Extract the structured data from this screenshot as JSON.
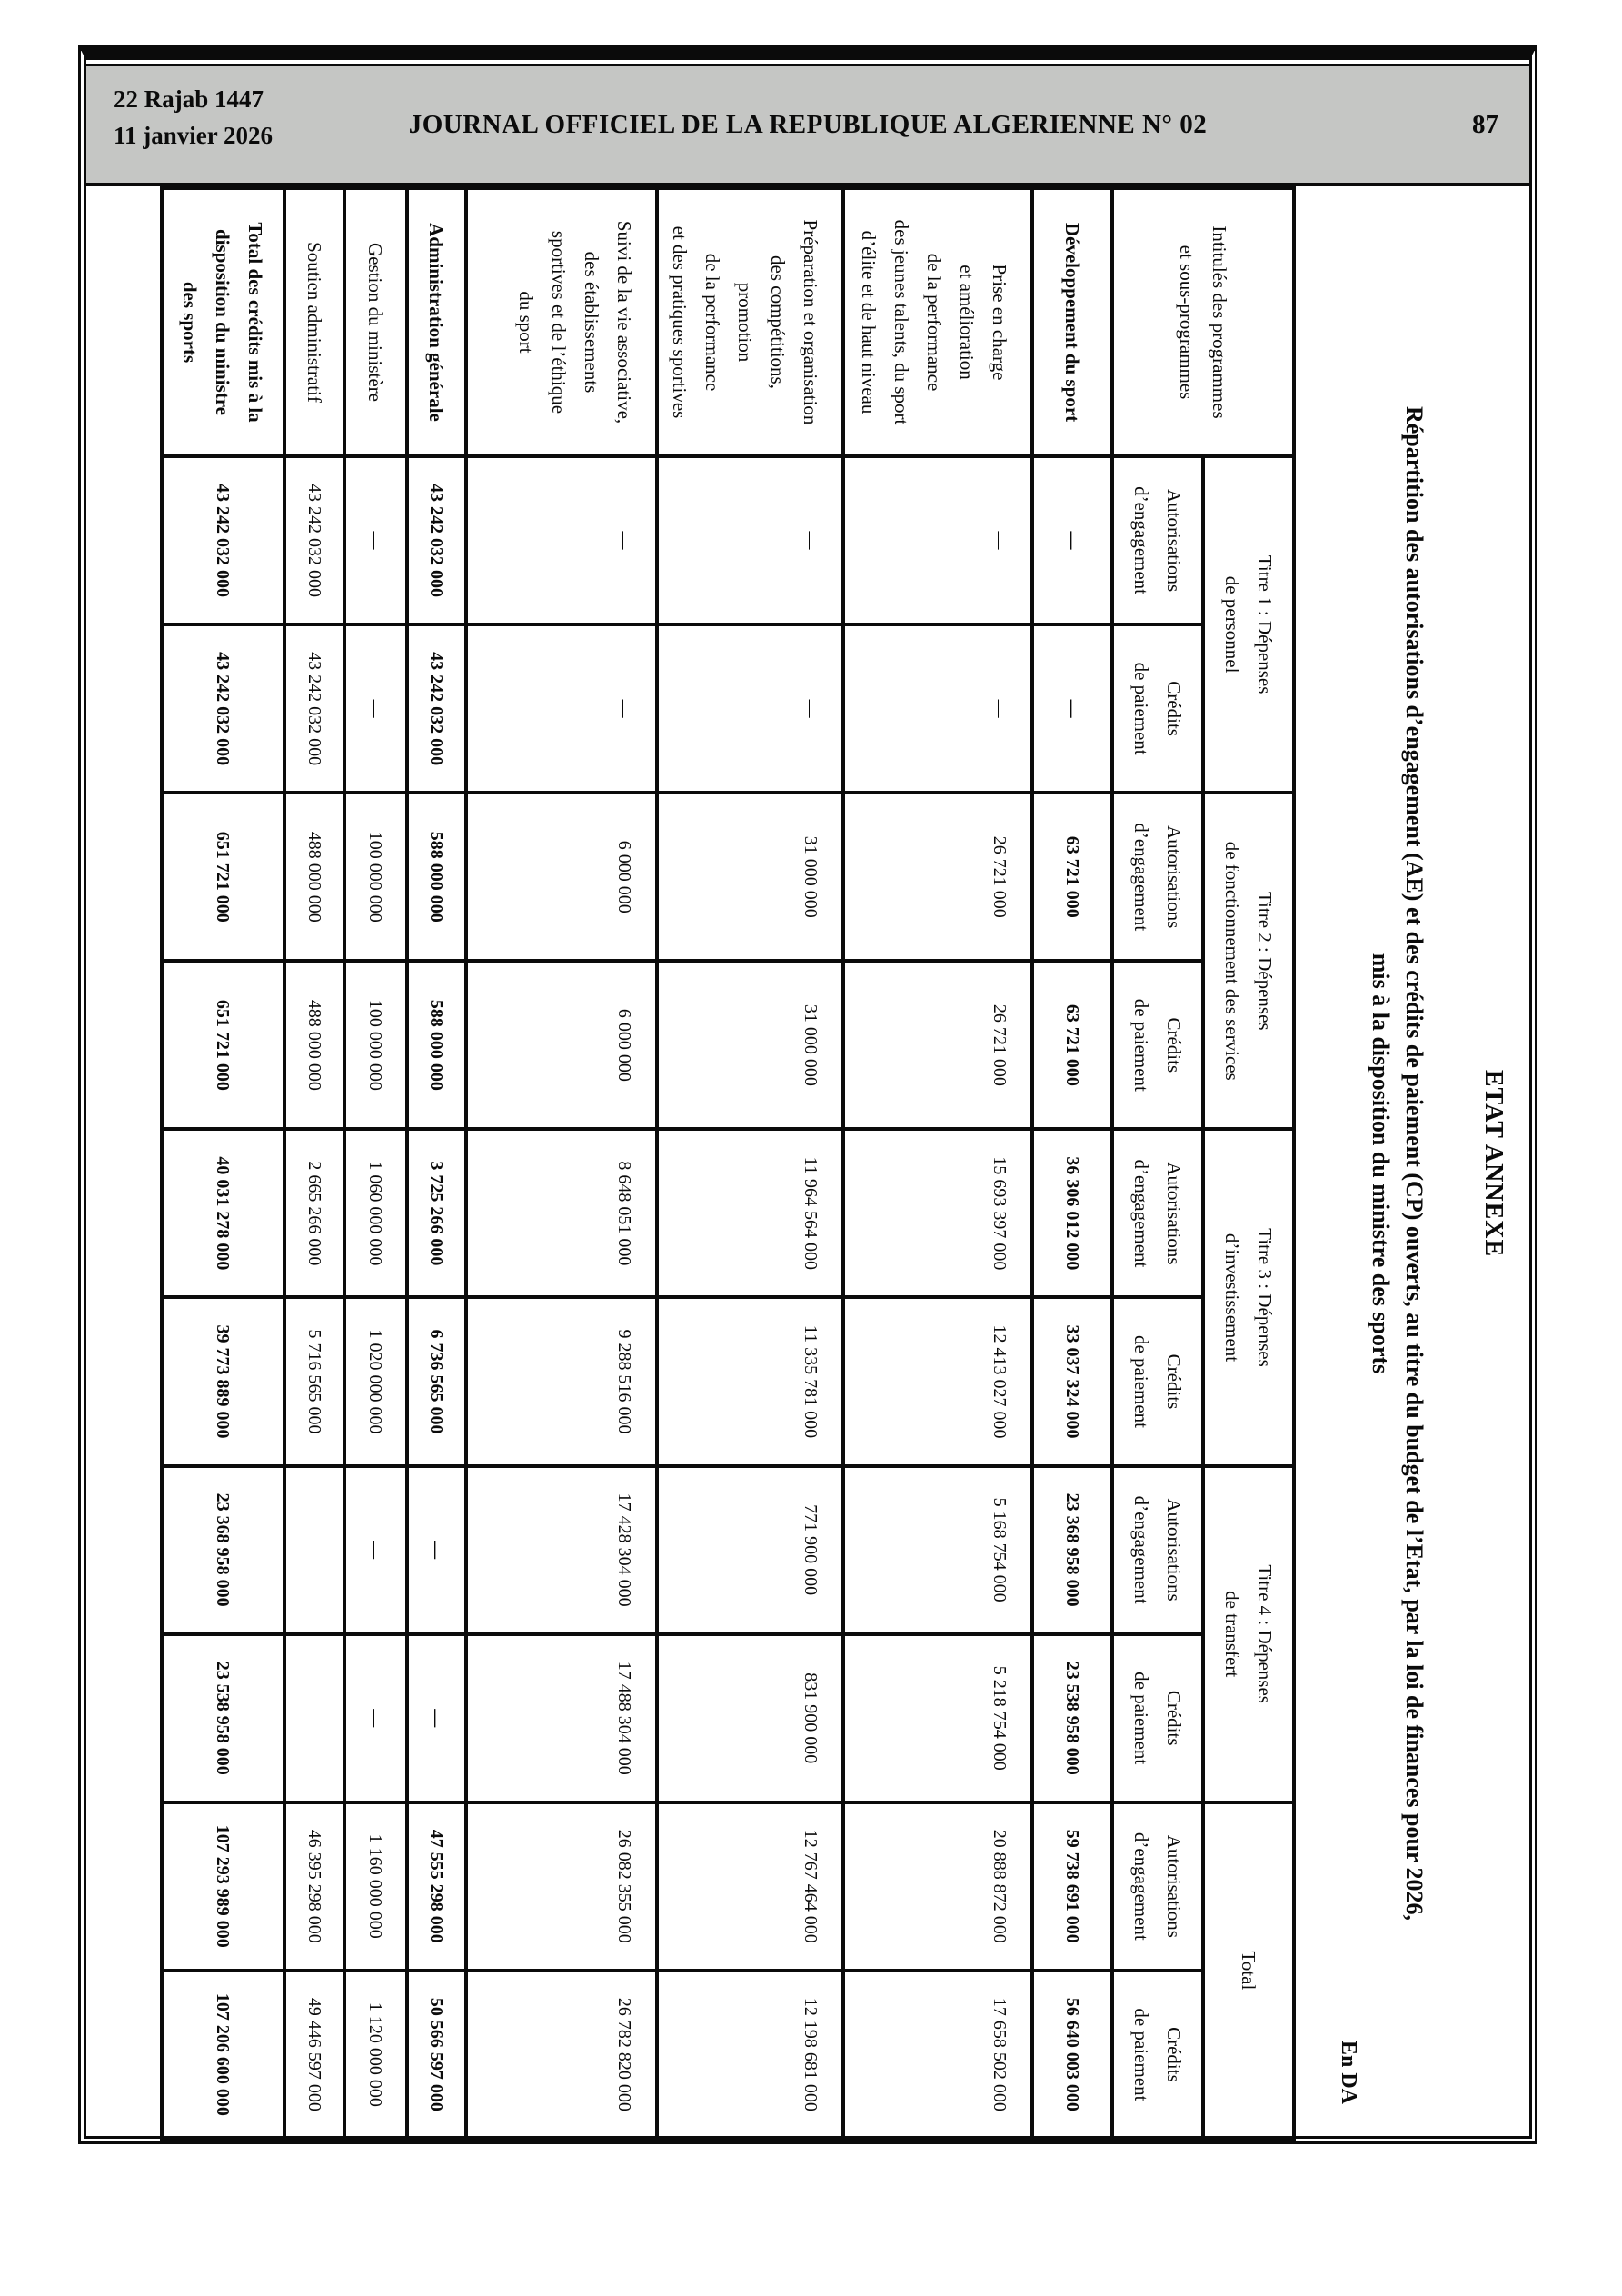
{
  "band": {
    "date_hijri": "22 Rajab 1447",
    "date_gregorian": "11 janvier 2026",
    "journal_title": "JOURNAL OFFICIEL DE LA REPUBLIQUE ALGERIENNE N° 02",
    "page_number": "87"
  },
  "annex": {
    "heading": "ETAT ANNEXE",
    "title_line1": "Répartition des autorisations d’engagement (AE) et des crédits de paiement (CP) ouverts, au titre du budget de l’Etat, par la loi de finances pour 2026,",
    "title_line2": "mis à la disposition du ministre des sports",
    "currency": "En DA"
  },
  "table": {
    "header": {
      "intitules": "Intitulés des programmes\net sous-programmes",
      "groups": [
        {
          "label": "Titre 1 : Dépenses\nde personnel"
        },
        {
          "label": "Titre 2 : Dépenses\nde fonctionnement des services"
        },
        {
          "label": "Titre 3 : Dépenses\nd’investissement"
        },
        {
          "label": "Titre 4 : Dépenses\nde transfert"
        },
        {
          "label": "Total"
        }
      ],
      "ae_label": "Autorisations\nd’engagement",
      "cp_label": "Crédits\nde paiement"
    },
    "rows": [
      {
        "name": "Développement du sport",
        "bold": true,
        "values": [
          "—",
          "—",
          "63 721 000",
          "63 721 000",
          "36 306 012 000",
          "33 037 324 000",
          "23 368 958 000",
          "23 538 958 000",
          "59 738 691 000",
          "56 640 003 000"
        ]
      },
      {
        "name": "Prise en charge\net amélioration\nde la performance\ndes jeunes talents, du sport\nd’élite et de haut niveau",
        "bold": false,
        "values": [
          "—",
          "—",
          "26 721 000",
          "26 721 000",
          "15 693 397 000",
          "12 413 027 000",
          "5 168 754 000",
          "5 218 754 000",
          "20 888 872 000",
          "17 658 502 000"
        ]
      },
      {
        "name": "Préparation et organisation\ndes compétitions,\npromotion\nde la performance\net des pratiques sportives",
        "bold": false,
        "values": [
          "—",
          "—",
          "31 000 000",
          "31 000 000",
          "11 964 564 000",
          "11 335 781 000",
          "771 900 000",
          "831 900 000",
          "12 767 464 000",
          "12 198 681 000"
        ]
      },
      {
        "name": "Suivi de la vie associative,\ndes établissements\nsportives et de l’éthique\ndu sport",
        "bold": false,
        "values": [
          "—",
          "—",
          "6 000 000",
          "6 000 000",
          "8 648 051 000",
          "9 288 516 000",
          "17 428 304 000",
          "17 488 304 000",
          "26 082 355 000",
          "26 782 820 000"
        ]
      },
      {
        "name": "Administration générale",
        "bold": true,
        "values": [
          "43 242 032 000",
          "43 242 032 000",
          "588 000 000",
          "588 000 000",
          "3 725 266 000",
          "6 736 565 000",
          "—",
          "—",
          "47 555 298 000",
          "50 566 597 000"
        ]
      },
      {
        "name": "Gestion du ministère",
        "bold": false,
        "values": [
          "—",
          "—",
          "100 000 000",
          "100 000 000",
          "1 060 000 000",
          "1 020 000 000",
          "—",
          "—",
          "1 160 000 000",
          "1 120 000 000"
        ]
      },
      {
        "name": "Soutien administratif",
        "bold": false,
        "values": [
          "43 242 032 000",
          "43 242 032 000",
          "488 000 000",
          "488 000 000",
          "2 665 266 000",
          "5 716 565 000",
          "—",
          "—",
          "46 395 298 000",
          "49 446 597 000"
        ]
      },
      {
        "name": "Total des crédits mis à la\ndisposition du ministre\ndes sports",
        "bold": true,
        "values": [
          "43 242 032 000",
          "43 242 032 000",
          "651 721 000",
          "651 721 000",
          "40 031 278 000",
          "39 773 889 000",
          "23 368 958 000",
          "23 538 958 000",
          "107 293 989 000",
          "107 206 600 000"
        ]
      }
    ]
  }
}
